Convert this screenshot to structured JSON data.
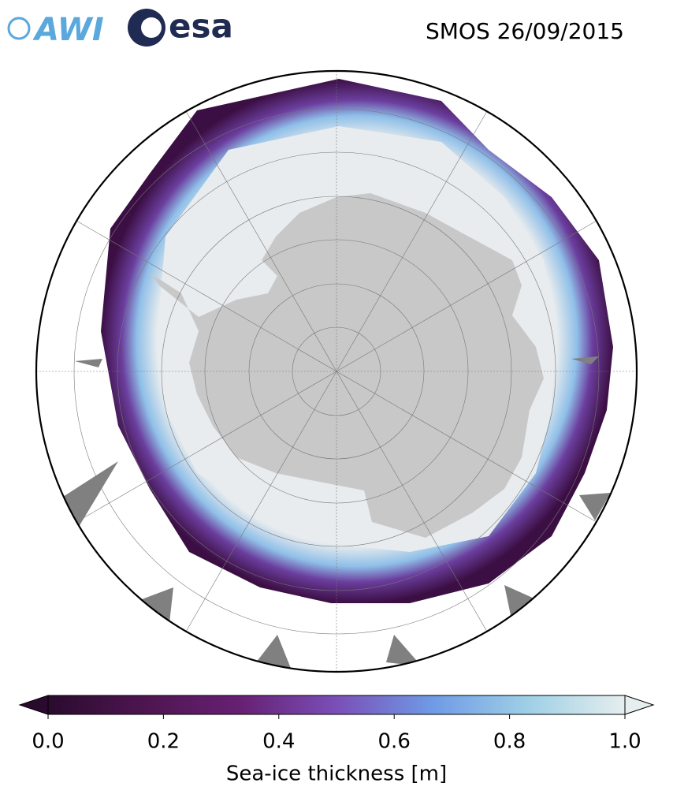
{
  "header": {
    "awi_logo": "AWI",
    "esa_logo": "esa",
    "title": "SMOS 26/09/2015"
  },
  "colorbar": {
    "lim": [
      0,
      1
    ],
    "ticks": [
      {
        "value": 0,
        "label": "0.0"
      },
      0.2,
      0.4,
      0.6,
      0.8,
      {
        "value": 1,
        "label": "1.0"
      }
    ],
    "label": "Sea-ice thickness [m]",
    "colors": [
      "#2a0b2e",
      "#4e1550",
      "#672073",
      "#7a4fb8",
      "#6f9ae6",
      "#9fd0e6",
      "#e6eeee"
    ],
    "extend": "both"
  }
}
